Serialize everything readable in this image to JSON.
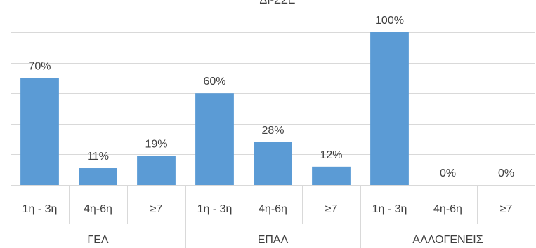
{
  "chart_data": {
    "type": "bar",
    "title": "ΔΙ-ΣΣΕ",
    "groups": [
      {
        "label": "ΓΕΛ",
        "categories": [
          "1η - 3η",
          "4η-6η",
          "≥7"
        ],
        "values": [
          70,
          11,
          19
        ],
        "value_labels": [
          "70%",
          "11%",
          "19%"
        ]
      },
      {
        "label": "ΕΠΑΛ",
        "categories": [
          "1η - 3η",
          "4η-6η",
          "≥7"
        ],
        "values": [
          60,
          28,
          12
        ],
        "value_labels": [
          "60%",
          "28%",
          "12%"
        ]
      },
      {
        "label": "ΑΛΛΟΓΕΝΕΙΣ",
        "categories": [
          "1η - 3η",
          "4η-6η",
          "≥7"
        ],
        "values": [
          100,
          0,
          0
        ],
        "value_labels": [
          "100%",
          "0%",
          "0%"
        ]
      }
    ],
    "ylim": [
      0,
      100
    ],
    "grid": true,
    "bar_color": "#5B9BD5",
    "grid_color": "#D9D9D9"
  }
}
